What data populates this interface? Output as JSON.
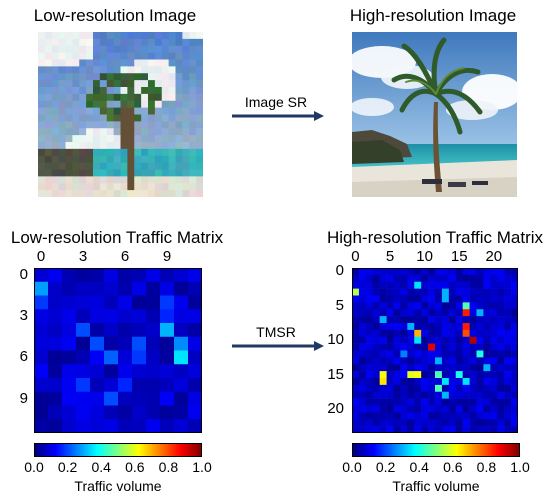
{
  "image_sr": {
    "low_title": "Low-resolution Image",
    "high_title": "High-resolution Image",
    "arrow_label": "Image SR"
  },
  "tmsr": {
    "low_title": "Low-resolution Traffic Matrix",
    "high_title": "High-resolution Traffic Matrix",
    "arrow_label": "TMSR",
    "low_ticks": [
      "0",
      "3",
      "6",
      "9"
    ],
    "high_ticks": [
      "0",
      "5",
      "10",
      "15",
      "20"
    ],
    "colorbar_ticks": [
      "0.0",
      "0.2",
      "0.4",
      "0.6",
      "0.8",
      "1.0"
    ],
    "colorbar_label": "Traffic volume"
  },
  "colors": {
    "arrow": "#1f3864",
    "sky": "#6f9fd0",
    "sea": "#2fb3b8",
    "sand": "#e8e6df",
    "palm": "#2f5a2a"
  }
}
